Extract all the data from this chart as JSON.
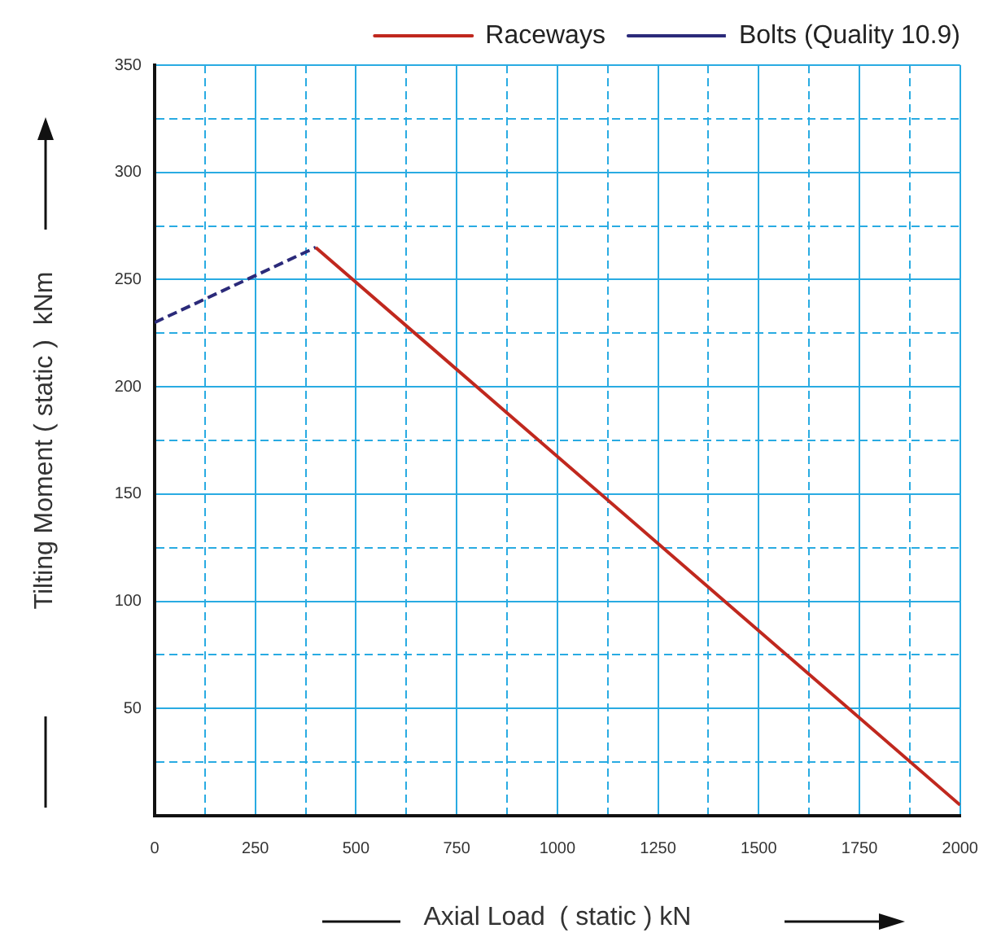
{
  "chart_data": {
    "type": "line",
    "xlabel": "Axial Load  ( static ) kN",
    "ylabel": "Tilting Moment ( static )  kNm",
    "series": [
      {
        "name": "Raceways",
        "color": "#c0281e",
        "line_style": "solid",
        "x": [
          400,
          2000
        ],
        "values": [
          265,
          5
        ]
      },
      {
        "name": "Bolts (Quality 10.9)",
        "color": "#2b2a7a",
        "line_style": "dashed",
        "x": [
          0,
          400
        ],
        "values": [
          230,
          265
        ]
      }
    ],
    "xlim": [
      0,
      2000
    ],
    "ylim": [
      0,
      350
    ],
    "xticks": [
      0,
      {
        "value": 125,
        "label": null
      },
      250,
      {
        "value": 375,
        "label": null
      },
      500,
      {
        "value": 625,
        "label": null
      },
      750,
      {
        "value": 875,
        "label": null
      },
      1000,
      {
        "value": 1125,
        "label": null
      },
      1250,
      {
        "value": 1375,
        "label": null
      },
      1500,
      {
        "value": 1625,
        "label": null
      },
      1750,
      {
        "value": 1875,
        "label": null
      },
      2000
    ],
    "yticks": [
      {
        "value": 25,
        "label": null
      },
      50,
      {
        "value": 75,
        "label": null
      },
      100,
      {
        "value": 125,
        "label": null
      },
      150,
      {
        "value": 175,
        "label": null
      },
      200,
      {
        "value": 225,
        "label": null
      },
      250,
      {
        "value": 275,
        "label": null
      },
      300,
      {
        "value": 325,
        "label": null
      },
      350
    ],
    "grid": true,
    "legend": "top",
    "marker": "none"
  }
}
